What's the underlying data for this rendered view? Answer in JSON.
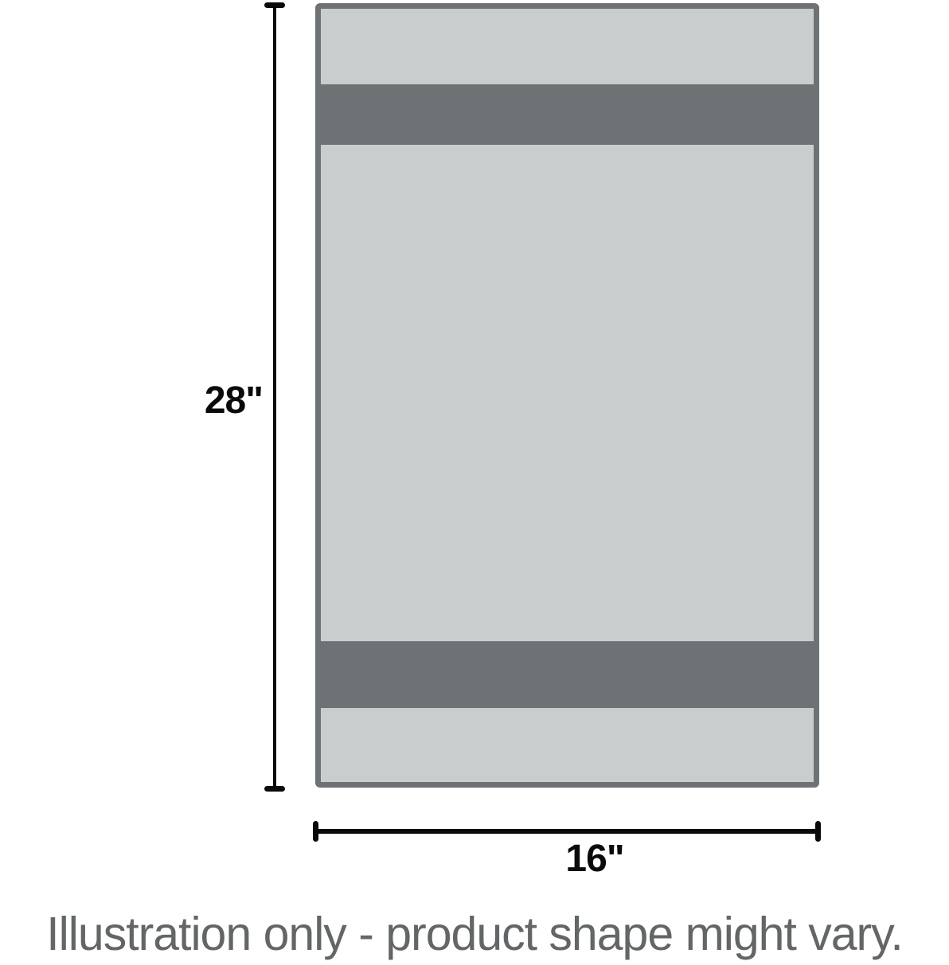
{
  "figure": {
    "type": "product-dimension-diagram",
    "height_label": "28\"",
    "width_label": "16\"",
    "caption": "Illustration only - product shape might vary."
  },
  "colors": {
    "background": "#ffffff",
    "towel_light": "#c9cdce",
    "towel_dark": "#6e7275",
    "dimension_line": "#0a0a0a",
    "label_text": "#0a0a0a",
    "caption_text": "#636666"
  }
}
